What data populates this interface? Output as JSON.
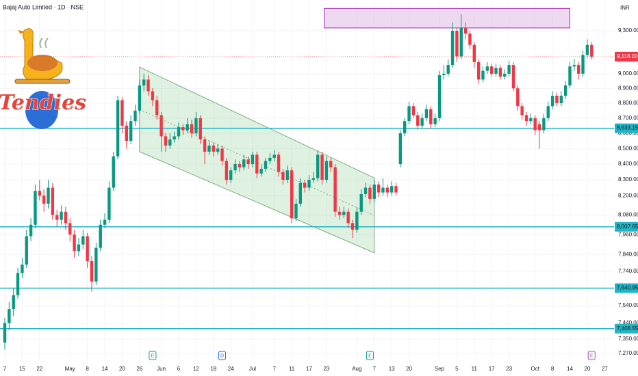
{
  "chart_data": {
    "type": "candlestick",
    "title": "Bajaj Auto Limited · 1D · NSE",
    "currency": "INR",
    "log_scale": true,
    "grid": true,
    "up_color": "#089981",
    "down_color": "#f23645",
    "ylim": [
      7228,
      9521
    ],
    "yticks": [
      {
        "value": 9300,
        "label": "9,300.00"
      },
      {
        "value": 9000,
        "label": "9,000.00"
      },
      {
        "value": 8900,
        "label": "8,900.00"
      },
      {
        "value": 8800,
        "label": "8,800.00"
      },
      {
        "value": 8700,
        "label": "8,700.00"
      },
      {
        "value": 8600,
        "label": "8,600.00"
      },
      {
        "value": 8500,
        "label": "8,500.00"
      },
      {
        "value": 8400,
        "label": "8,400.00"
      },
      {
        "value": 8300,
        "label": "8,300.00"
      },
      {
        "value": 8200,
        "label": "8,200.00"
      },
      {
        "value": 8080,
        "label": "8,080.00"
      },
      {
        "value": 7960,
        "label": "7,960.00"
      },
      {
        "value": 7840,
        "label": "7,840.00"
      },
      {
        "value": 7740,
        "label": "7,740.00"
      },
      {
        "value": 7540,
        "label": "7,540.00"
      },
      {
        "value": 7440,
        "label": "7,440.00"
      },
      {
        "value": 7350,
        "label": "7,350.00"
      },
      {
        "value": 7270,
        "label": "7,270.00"
      }
    ],
    "categories": [
      "7",
      null,
      null,
      null,
      "15",
      null,
      null,
      null,
      "22",
      null,
      null,
      null,
      null,
      null,
      null,
      "May",
      null,
      null,
      null,
      "8",
      null,
      null,
      null,
      "14",
      null,
      null,
      null,
      "20",
      null,
      null,
      null,
      "26",
      null,
      null,
      null,
      null,
      "Jun",
      null,
      null,
      null,
      "6",
      null,
      null,
      null,
      "12",
      null,
      null,
      null,
      "18",
      null,
      null,
      null,
      "24",
      null,
      null,
      null,
      null,
      "Jul",
      null,
      null,
      null,
      null,
      "7",
      null,
      null,
      null,
      "11",
      null,
      null,
      null,
      "17",
      null,
      null,
      null,
      "23",
      null,
      null,
      null,
      null,
      null,
      null,
      "Aug",
      null,
      null,
      null,
      "7",
      null,
      null,
      null,
      "13",
      null,
      null,
      null,
      "20",
      null,
      null,
      null,
      null,
      null,
      null,
      "Sep",
      null,
      null,
      null,
      "5",
      null,
      null,
      null,
      "11",
      null,
      null,
      null,
      "17",
      null,
      null,
      null,
      "23",
      null,
      null,
      null,
      null,
      null,
      "Oct",
      null,
      null,
      null,
      "8",
      null,
      null,
      null,
      "14",
      null,
      null,
      null,
      "20",
      null,
      null,
      null,
      "27",
      null
    ],
    "ohlc": [
      [
        7330,
        7470,
        7290,
        7440
      ],
      [
        7440,
        7560,
        7400,
        7520
      ],
      [
        7520,
        7640,
        7480,
        7600
      ],
      [
        7600,
        7760,
        7580,
        7730
      ],
      [
        7730,
        7820,
        7700,
        7780
      ],
      [
        7780,
        7990,
        7760,
        7950
      ],
      [
        7950,
        8060,
        7920,
        8020
      ],
      [
        8020,
        8270,
        8000,
        8230
      ],
      [
        8230,
        8300,
        8170,
        8200
      ],
      [
        8200,
        8240,
        8100,
        8150
      ],
      [
        8150,
        8300,
        8120,
        8250
      ],
      [
        8250,
        8280,
        8050,
        8080
      ],
      [
        8080,
        8110,
        8010,
        8050
      ],
      [
        8050,
        8140,
        8020,
        8100
      ],
      [
        8100,
        8130,
        7990,
        8030
      ],
      [
        8030,
        8060,
        7920,
        7960
      ],
      [
        7960,
        7990,
        7820,
        7860
      ],
      [
        7860,
        7940,
        7830,
        7900
      ],
      [
        7900,
        7990,
        7870,
        7950
      ],
      [
        7950,
        7970,
        7760,
        7800
      ],
      [
        7800,
        7830,
        7620,
        7680
      ],
      [
        7680,
        7910,
        7660,
        7880
      ],
      [
        7880,
        8050,
        7860,
        8020
      ],
      [
        8020,
        8090,
        8000,
        8050
      ],
      [
        8050,
        8290,
        8030,
        8250
      ],
      [
        8250,
        8480,
        8230,
        8450
      ],
      [
        8450,
        8850,
        8430,
        8820
      ],
      [
        8820,
        8840,
        8600,
        8650
      ],
      [
        8650,
        8680,
        8500,
        8550
      ],
      [
        8550,
        8720,
        8530,
        8680
      ],
      [
        8680,
        8790,
        8650,
        8750
      ],
      [
        8750,
        8960,
        8730,
        8920
      ],
      [
        8920,
        9000,
        8880,
        8960
      ],
      [
        8960,
        8990,
        8850,
        8880
      ],
      [
        8880,
        8900,
        8780,
        8820
      ],
      [
        8820,
        8850,
        8690,
        8720
      ],
      [
        8720,
        8740,
        8480,
        8580
      ],
      [
        8580,
        8600,
        8480,
        8520
      ],
      [
        8520,
        8600,
        8500,
        8560
      ],
      [
        8560,
        8610,
        8540,
        8580
      ],
      [
        8580,
        8670,
        8560,
        8640
      ],
      [
        8640,
        8660,
        8590,
        8620
      ],
      [
        8620,
        8700,
        8600,
        8660
      ],
      [
        8660,
        8690,
        8570,
        8600
      ],
      [
        8600,
        8740,
        8580,
        8700
      ],
      [
        8700,
        8720,
        8530,
        8560
      ],
      [
        8560,
        8580,
        8400,
        8480
      ],
      [
        8480,
        8550,
        8460,
        8520
      ],
      [
        8520,
        8540,
        8450,
        8480
      ],
      [
        8480,
        8530,
        8460,
        8500
      ],
      [
        8500,
        8520,
        8390,
        8420
      ],
      [
        8420,
        8440,
        8270,
        8300
      ],
      [
        8300,
        8380,
        8280,
        8360
      ],
      [
        8360,
        8430,
        8340,
        8400
      ],
      [
        8400,
        8420,
        8350,
        8380
      ],
      [
        8380,
        8460,
        8360,
        8430
      ],
      [
        8430,
        8450,
        8370,
        8400
      ],
      [
        8400,
        8480,
        8380,
        8460
      ],
      [
        8460,
        8480,
        8310,
        8340
      ],
      [
        8340,
        8390,
        8320,
        8370
      ],
      [
        8370,
        8440,
        8350,
        8420
      ],
      [
        8420,
        8470,
        8400,
        8440
      ],
      [
        8440,
        8490,
        8420,
        8460
      ],
      [
        8460,
        8480,
        8320,
        8350
      ],
      [
        8350,
        8370,
        8270,
        8300
      ],
      [
        8300,
        8390,
        8280,
        8360
      ],
      [
        8360,
        8380,
        8030,
        8060
      ],
      [
        8060,
        8180,
        8040,
        8150
      ],
      [
        8150,
        8310,
        8130,
        8280
      ],
      [
        8280,
        8300,
        8220,
        8250
      ],
      [
        8250,
        8330,
        8230,
        8300
      ],
      [
        8300,
        8350,
        8280,
        8310
      ],
      [
        8310,
        8490,
        8290,
        8460
      ],
      [
        8460,
        8480,
        8270,
        8300
      ],
      [
        8300,
        8450,
        8280,
        8420
      ],
      [
        8420,
        8440,
        8350,
        8380
      ],
      [
        8380,
        8400,
        8070,
        8100
      ],
      [
        8100,
        8130,
        8050,
        8080
      ],
      [
        8080,
        8130,
        8060,
        8100
      ],
      [
        8100,
        8120,
        8000,
        8030
      ],
      [
        8030,
        8050,
        7940,
        7990
      ],
      [
        7990,
        8130,
        7970,
        8100
      ],
      [
        8100,
        8240,
        8080,
        8210
      ],
      [
        8210,
        8280,
        8190,
        8250
      ],
      [
        8250,
        8270,
        8150,
        8180
      ],
      [
        8180,
        8300,
        8160,
        8270
      ],
      [
        8270,
        8290,
        8190,
        8220
      ],
      [
        8220,
        8310,
        8200,
        8250
      ],
      [
        8250,
        8270,
        8190,
        8220
      ],
      [
        8220,
        8290,
        8200,
        8260
      ],
      [
        8260,
        8280,
        8200,
        8220
      ],
      [
        8400,
        8620,
        8380,
        8600
      ],
      [
        8600,
        8700,
        8580,
        8680
      ],
      [
        8680,
        8810,
        8660,
        8780
      ],
      [
        8780,
        8800,
        8700,
        8720
      ],
      [
        8720,
        8740,
        8620,
        8650
      ],
      [
        8650,
        8730,
        8630,
        8700
      ],
      [
        8700,
        8790,
        8680,
        8760
      ],
      [
        8760,
        8780,
        8630,
        8660
      ],
      [
        8660,
        8730,
        8640,
        8700
      ],
      [
        8700,
        9020,
        8680,
        8990
      ],
      [
        8990,
        9060,
        8960,
        9000
      ],
      [
        9000,
        9100,
        8980,
        9060
      ],
      [
        9060,
        9360,
        9040,
        9300
      ],
      [
        9300,
        9320,
        9080,
        9120
      ],
      [
        9120,
        9420,
        9100,
        9320
      ],
      [
        9320,
        9360,
        9240,
        9280
      ],
      [
        9280,
        9300,
        9170,
        9200
      ],
      [
        9200,
        9220,
        9040,
        9080
      ],
      [
        9080,
        9100,
        8930,
        8960
      ],
      [
        8960,
        9050,
        8940,
        9020
      ],
      [
        9020,
        9080,
        9000,
        9050
      ],
      [
        9050,
        9070,
        8980,
        9000
      ],
      [
        9000,
        9070,
        8980,
        9040
      ],
      [
        9040,
        9060,
        8960,
        8980
      ],
      [
        8980,
        9030,
        8960,
        9000
      ],
      [
        9000,
        9090,
        8980,
        9060
      ],
      [
        9060,
        9080,
        8880,
        8900
      ],
      [
        8900,
        8920,
        8750,
        8780
      ],
      [
        8780,
        8800,
        8690,
        8720
      ],
      [
        8720,
        8740,
        8650,
        8680
      ],
      [
        8680,
        8730,
        8660,
        8700
      ],
      [
        8700,
        8720,
        8590,
        8620
      ],
      [
        8660,
        8680,
        8500,
        8620
      ],
      [
        8620,
        8730,
        8600,
        8700
      ],
      [
        8700,
        8810,
        8680,
        8780
      ],
      [
        8780,
        8880,
        8760,
        8850
      ],
      [
        8850,
        8870,
        8780,
        8800
      ],
      [
        8800,
        8880,
        8780,
        8850
      ],
      [
        8850,
        8950,
        8830,
        8920
      ],
      [
        8920,
        9080,
        8900,
        9050
      ],
      [
        9050,
        9100,
        9020,
        9060
      ],
      [
        9060,
        9080,
        8960,
        9000
      ],
      [
        9000,
        9160,
        8980,
        9130
      ],
      [
        9130,
        9240,
        9110,
        9200
      ],
      [
        9200,
        9220,
        9100,
        9118
      ],
      null,
      null,
      null,
      null
    ],
    "last_price": {
      "value": 9118,
      "label": "9,118.00",
      "color": "#f23645"
    },
    "level_color": "#22b5c4",
    "levels": [
      {
        "value": 8633.15,
        "label": "8,633.15"
      },
      {
        "value": 8007.65,
        "label": "8,007.65"
      },
      {
        "value": 7640.95,
        "label": "7,640.95"
      },
      {
        "value": 7408.55,
        "label": "7,408.55"
      }
    ],
    "rectangle": {
      "x": [
        73.5,
        130
      ],
      "price": [
        9460,
        9320
      ],
      "color": "#9c27b0"
    },
    "channel": {
      "x": [
        31,
        85
      ],
      "top": [
        9046,
        8312
      ],
      "bottom": [
        8480,
        7850
      ],
      "color": "#7fa87f"
    },
    "events": [
      {
        "index": 34,
        "label": "E",
        "color": "#089981"
      },
      {
        "index": 50,
        "label": "D",
        "color": "#2962ff"
      },
      {
        "index": 84,
        "label": "E",
        "color": "#089981"
      },
      {
        "index": 135,
        "label": "E",
        "color": "#ab47bc"
      }
    ]
  },
  "logo": {
    "text": "Tendies"
  }
}
